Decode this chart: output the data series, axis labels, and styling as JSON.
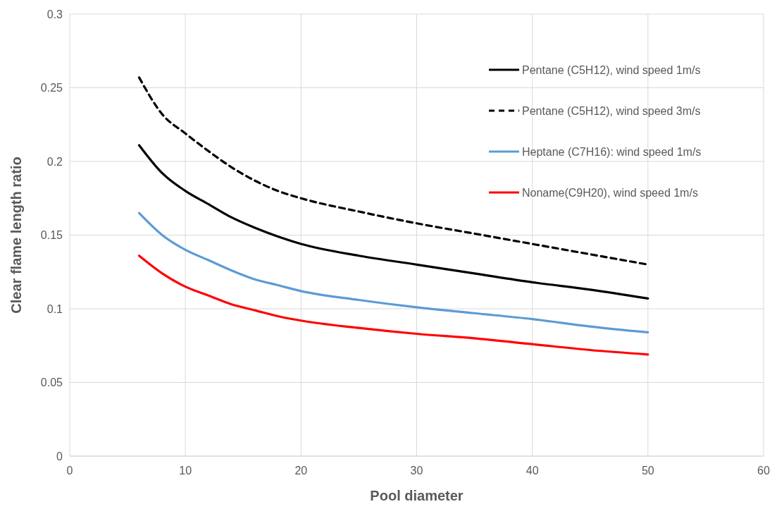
{
  "chart_data": {
    "type": "line",
    "xlabel": "Pool diameter",
    "ylabel": "Clear flame length ratio",
    "xlim": [
      0,
      60
    ],
    "xticks": [
      0,
      10,
      20,
      30,
      40,
      50,
      60
    ],
    "ylim": [
      0,
      0.3
    ],
    "yticks": [
      0,
      0.05,
      0.1,
      0.15,
      0.2,
      0.25,
      0.3
    ],
    "grid": true,
    "legend": "top right",
    "marker": "none",
    "x": [
      6,
      8,
      10,
      12,
      14,
      16,
      18,
      20,
      25,
      30,
      35,
      40,
      45,
      50
    ],
    "series": [
      {
        "name": "Pentane (C5H12), wind speed 1m/s",
        "color": "#000000",
        "line_style": "solid",
        "values": [
          0.211,
          0.192,
          0.18,
          0.171,
          0.162,
          0.155,
          0.149,
          0.144,
          0.136,
          0.13,
          0.124,
          0.118,
          0.113,
          0.107
        ]
      },
      {
        "name": "Pentane (C5H12), wind speed 3m/s",
        "color": "#000000",
        "line_style": "dashed",
        "values": [
          0.257,
          0.232,
          0.219,
          0.207,
          0.196,
          0.187,
          0.18,
          0.175,
          0.166,
          0.158,
          0.151,
          0.144,
          0.137,
          0.13
        ]
      },
      {
        "name": "Heptane (C7H16): wind speed 1m/s",
        "color": "#5b9bd5",
        "line_style": "solid",
        "values": [
          0.165,
          0.15,
          0.14,
          0.133,
          0.126,
          0.12,
          0.116,
          0.112,
          0.106,
          0.101,
          0.097,
          0.093,
          0.088,
          0.084
        ]
      },
      {
        "name": "Noname(C9H20), wind speed 1m/s",
        "color": "#ff0000",
        "line_style": "solid",
        "values": [
          0.136,
          0.124,
          0.115,
          0.109,
          0.103,
          0.099,
          0.095,
          0.092,
          0.087,
          0.083,
          0.08,
          0.076,
          0.072,
          0.069
        ]
      }
    ]
  }
}
